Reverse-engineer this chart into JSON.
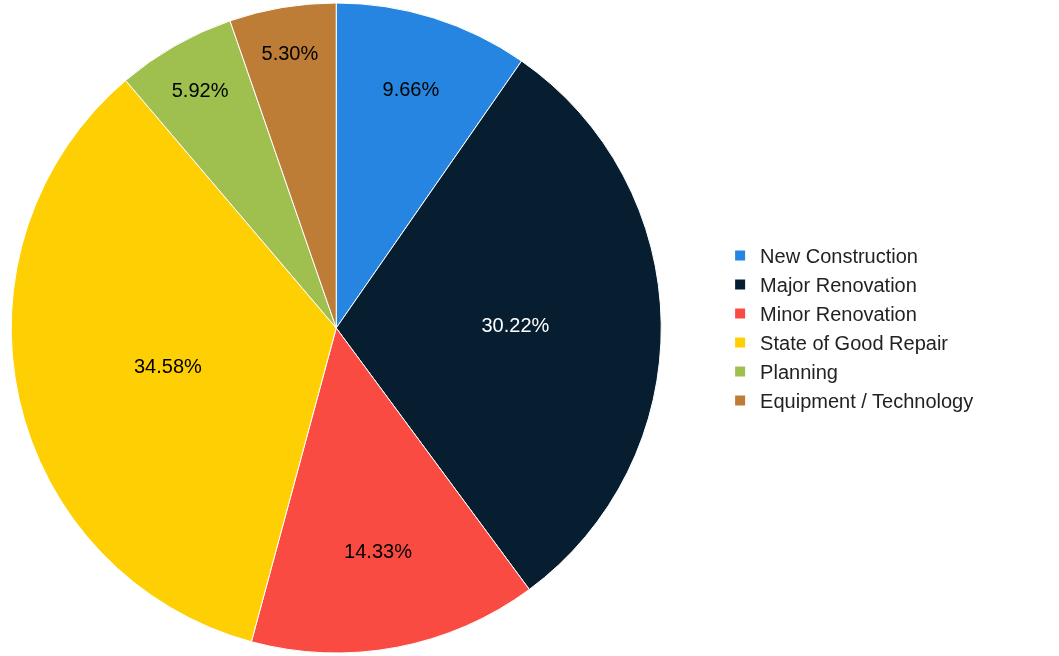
{
  "chart_data": {
    "type": "pie",
    "categories": [
      "New Construction",
      "Major Renovation",
      "Minor Renovation",
      "State of Good Repair",
      "Planning",
      "Equipment / Technology"
    ],
    "values": [
      9.66,
      30.22,
      14.33,
      34.58,
      5.92,
      5.3
    ],
    "colors": [
      "#2585e0",
      "#061e30",
      "#fa4b42",
      "#fecf02",
      "#9fbf4f",
      "#be7d36"
    ],
    "value_labels": [
      "9.66%",
      "30.22%",
      "14.33%",
      "34.58%",
      "5.92%",
      "5.30%"
    ],
    "legend": "right"
  }
}
